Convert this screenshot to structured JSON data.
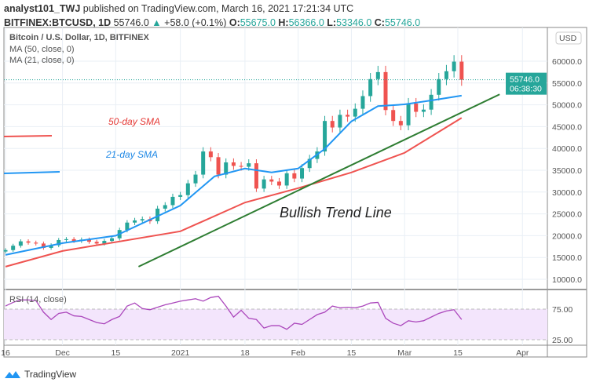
{
  "header": {
    "author": "analyst101_TWJ",
    "published": "published on TradingView.com, March 16, 2021 17:21:34 UTC",
    "symbol": "BITFINEX:BTCUSD, 1D",
    "last": "55746.0",
    "change": "+58.0 (+0.1%)",
    "o_label": "O:",
    "o": "55675.0",
    "h_label": "H:",
    "h": "56366.0",
    "l_label": "L:",
    "l": "53346.0",
    "c_label": "C:",
    "c": "55746.0"
  },
  "legend": {
    "title": "Bitcoin / U.S. Dollar, 1D, BITFINEX",
    "ma50": "MA (50, close, 0)",
    "ma21": "MA (21, close, 0)",
    "rsi": "RSI (14, close)"
  },
  "annotations": {
    "sma50": "50-day SMA",
    "sma21": "21-day SMA",
    "trend": "Bullish Trend Line"
  },
  "price_axis": {
    "currency": "USD",
    "current_price": "55746.0",
    "countdown": "06:38:30"
  },
  "logo": "TradingView",
  "colors": {
    "up": "#26a69a",
    "down": "#ef5350",
    "ma50": "#ef5350",
    "ma21": "#2196f3",
    "trend": "#2e7d32",
    "rsi": "#ab47bc",
    "rsi_band": "#f3e5fc"
  },
  "chart_data": {
    "type": "candlestick",
    "x_start": "2020-11-16",
    "x_step_days": 2,
    "closes": [
      16700,
      17700,
      18700,
      18400,
      18200,
      17200,
      17800,
      19000,
      19200,
      18800,
      19100,
      18600,
      18200,
      18800,
      19400,
      21300,
      23000,
      23500,
      23800,
      23300,
      26200,
      27000,
      28900,
      29300,
      32000,
      34000,
      39300,
      38000,
      34000,
      36800,
      36000,
      35800,
      36600,
      30800,
      32900,
      32400,
      31500,
      34300,
      33100,
      35500,
      37600,
      39300,
      46300,
      44800,
      47700,
      47300,
      49100,
      52000,
      55900,
      57500,
      48800,
      46300,
      45300,
      50300,
      48400,
      48900,
      52300,
      55900,
      57700,
      59900,
      55746
    ],
    "ma50": [
      [
        "2020-11-16",
        12900
      ],
      [
        "2020-12-01",
        16500
      ],
      [
        "2021-01-01",
        21000
      ],
      [
        "2021-01-18",
        27600
      ],
      [
        "2021-02-01",
        30900
      ],
      [
        "2021-02-15",
        34500
      ],
      [
        "2021-03-01",
        39000
      ],
      [
        "2021-03-16",
        47000
      ]
    ],
    "ma21": [
      [
        "2020-11-16",
        15600
      ],
      [
        "2020-12-01",
        18300
      ],
      [
        "2020-12-15",
        20000
      ],
      [
        "2021-01-01",
        26900
      ],
      [
        "2021-01-10",
        33600
      ],
      [
        "2021-01-18",
        35400
      ],
      [
        "2021-01-25",
        34500
      ],
      [
        "2021-02-01",
        35400
      ],
      [
        "2021-02-08",
        39900
      ],
      [
        "2021-02-15",
        46200
      ],
      [
        "2021-02-22",
        49700
      ],
      [
        "2021-03-01",
        50100
      ],
      [
        "2021-03-08",
        51000
      ],
      [
        "2021-03-16",
        52100
      ]
    ],
    "trend_line": [
      [
        "2020-12-21",
        12900
      ],
      [
        "2021-03-26",
        52400
      ]
    ],
    "rsi": [
      80,
      86,
      90,
      90,
      89,
      70,
      58,
      68,
      70,
      64,
      63,
      58,
      53,
      51,
      58,
      63,
      80,
      85,
      76,
      74,
      78,
      82,
      85,
      88,
      90,
      92,
      88,
      94,
      96,
      80,
      62,
      73,
      60,
      58,
      44,
      48,
      48,
      42,
      52,
      50,
      58,
      66,
      70,
      80,
      77,
      78,
      77,
      80,
      85,
      86,
      60,
      52,
      48,
      56,
      54,
      56,
      62,
      68,
      72,
      74,
      58
    ],
    "rsi_levels": [
      75,
      25
    ],
    "y_ticks": [
      "60000.0",
      "55000.0",
      "50000.0",
      "45000.0",
      "40000.0",
      "35000.0",
      "30000.0",
      "25000.0",
      "20000.0",
      "15000.0",
      "10000.0"
    ],
    "rsi_ticks": [
      "75.00",
      "25.00"
    ],
    "x_ticks": [
      [
        "16",
        "2020-11-16"
      ],
      [
        "Dec",
        "2020-12-01"
      ],
      [
        "15",
        "2020-12-15"
      ],
      [
        "2021",
        "2021-01-01"
      ],
      [
        "18",
        "2021-01-18"
      ],
      [
        "Feb",
        "2021-02-01"
      ],
      [
        "15",
        "2021-02-15"
      ],
      [
        "Mar",
        "2021-03-01"
      ],
      [
        "15",
        "2021-03-15"
      ],
      [
        "Apr",
        "2021-04-01"
      ]
    ],
    "ylim": [
      10000,
      62000
    ]
  }
}
